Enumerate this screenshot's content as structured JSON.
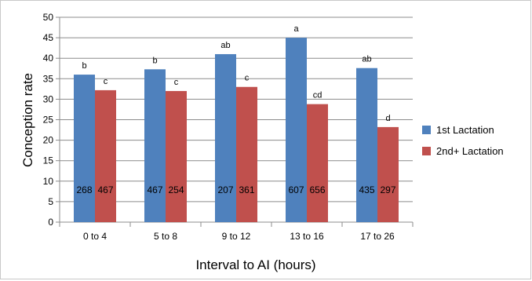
{
  "chart_data": {
    "type": "bar",
    "title": "",
    "xlabel": "Interval to AI (hours)",
    "ylabel": "Conception rate",
    "categories": [
      "0 to 4",
      "5 to 8",
      "9 to 12",
      "13 to 16",
      "17 to 26"
    ],
    "ylim": [
      0,
      50
    ],
    "yticks": [
      0,
      5,
      10,
      15,
      20,
      25,
      30,
      35,
      40,
      45,
      50
    ],
    "grid": true,
    "legend_position": "right",
    "series": [
      {
        "name": "1st Lactation",
        "color": "#4f81bd",
        "values": [
          36,
          37.3,
          41,
          45,
          37.6
        ],
        "significance_labels": [
          "b",
          "b",
          "ab",
          "a",
          "ab"
        ],
        "counts": [
          "268",
          "467",
          "207",
          "607",
          "435"
        ]
      },
      {
        "name": "2nd+ Lactation",
        "color": "#c0504d",
        "values": [
          32.2,
          32,
          33,
          28.8,
          23.2
        ],
        "significance_labels": [
          "c",
          "c",
          "c",
          "cd",
          "d"
        ],
        "counts": [
          "467",
          "254",
          "361",
          "656",
          "297"
        ]
      }
    ]
  }
}
